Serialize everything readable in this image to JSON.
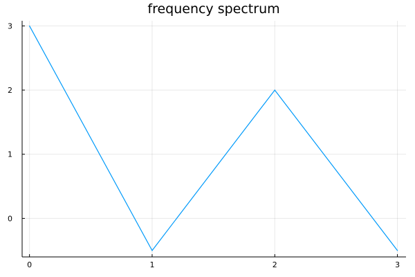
{
  "chart_data": {
    "type": "line",
    "title": "frequency spectrum",
    "xlabel": "",
    "ylabel": "",
    "xlim": [
      -0.06,
      3.07
    ],
    "ylim": [
      -0.6,
      3.08
    ],
    "xticks": [
      0,
      1,
      2,
      3
    ],
    "yticks": [
      0,
      1,
      2,
      3
    ],
    "grid": true,
    "legend": "none",
    "series": [
      {
        "color": "#009AFA",
        "x": [
          0,
          1,
          2,
          3
        ],
        "y": [
          3,
          -0.5,
          2,
          -0.5
        ]
      }
    ]
  }
}
